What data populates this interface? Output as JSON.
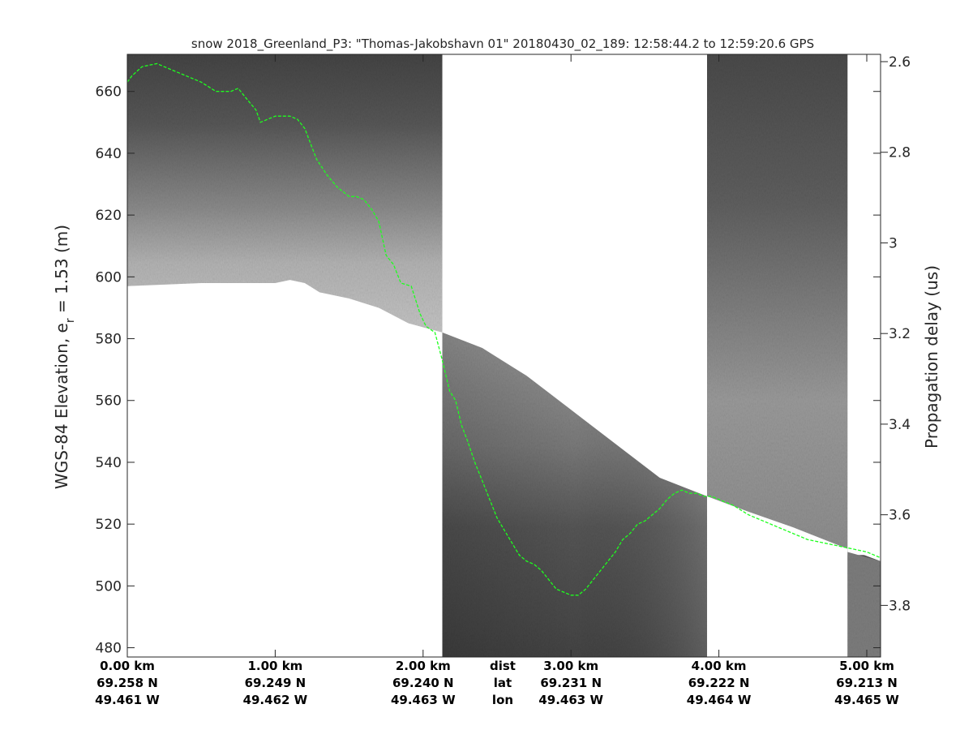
{
  "chart_data": {
    "type": "line",
    "title": "snow 2018_Greenland_P3: \"Thomas-Jakobshavn 01\"  20180430_02_189: 12:58:44.2 to 12:59:20.6 GPS",
    "ylabel_left": "WGS-84 Elevation, e",
    "ylabel_left_sub": "r",
    "ylabel_left_rest": " = 1.53 (m)",
    "ylabel_right": "Propagation delay (us)",
    "x_range_km": [
      0,
      5.0
    ],
    "ylim_left": [
      477,
      672
    ],
    "ylim_right_delay_us": [
      2.6,
      3.93
    ],
    "grid": false,
    "yticks_left": [
      "480",
      "500",
      "520",
      "540",
      "560",
      "580",
      "600",
      "620",
      "640",
      "660"
    ],
    "yticks_left_values": [
      480,
      500,
      520,
      540,
      560,
      580,
      600,
      620,
      640,
      660
    ],
    "yticks_right": [
      "2.6",
      "2.8",
      "3",
      "3.2",
      "3.4",
      "3.6",
      "3.8"
    ],
    "yticks_right_values": [
      2.6,
      2.8,
      3.0,
      3.2,
      3.4,
      3.6,
      3.8
    ],
    "bottom_axis": {
      "rows": [
        "dist",
        "lat",
        "lon"
      ],
      "columns": [
        {
          "x": 0.0,
          "dist": "0.00 km",
          "lat": "69.258 N",
          "lon": "49.461 W"
        },
        {
          "x": 1.0,
          "dist": "1.00 km",
          "lat": "69.249 N",
          "lon": "49.462 W"
        },
        {
          "x": 2.0,
          "dist": "2.00 km",
          "lat": "69.240 N",
          "lon": "49.463 W"
        },
        {
          "x": 3.0,
          "dist": "3.00 km",
          "lat": "69.231 N",
          "lon": "49.463 W"
        },
        {
          "x": 4.0,
          "dist": "4.00 km",
          "lat": "69.222 N",
          "lon": "49.464 W"
        },
        {
          "x": 5.0,
          "dist": "5.00 km",
          "lat": "69.213 N",
          "lon": "49.465 W"
        }
      ]
    },
    "radar_surface": {
      "description_color": "#1eff1e",
      "x": [
        0.0,
        0.03,
        0.1,
        0.2,
        0.3,
        0.4,
        0.5,
        0.6,
        0.7,
        0.75,
        0.8,
        0.87,
        0.9,
        1.0,
        1.1,
        1.15,
        1.2,
        1.28,
        1.35,
        1.42,
        1.5,
        1.55,
        1.6,
        1.65,
        1.7,
        1.75,
        1.8,
        1.85,
        1.92,
        1.98,
        2.02,
        2.08,
        2.13,
        2.18,
        2.22,
        2.26,
        2.3,
        2.35,
        2.4,
        2.45,
        2.5,
        2.55,
        2.6,
        2.65,
        2.7,
        2.75,
        2.8,
        2.85,
        2.9,
        2.95,
        3.0,
        3.05,
        3.1,
        3.15,
        3.2,
        3.25,
        3.3,
        3.35,
        3.4,
        3.45,
        3.5,
        3.55,
        3.6,
        3.65,
        3.7,
        3.75,
        3.8,
        3.85,
        3.9,
        3.95,
        4.0,
        4.1,
        4.2,
        4.3,
        4.4,
        4.5,
        4.6,
        4.7,
        4.8,
        4.9,
        5.0,
        5.05
      ],
      "elevation_m": [
        663,
        665,
        668,
        669,
        667,
        665,
        663,
        660,
        660,
        661,
        658,
        654,
        650,
        652,
        652,
        651,
        648,
        638,
        633,
        629,
        626,
        626,
        625,
        622,
        618,
        607,
        604,
        598,
        597,
        588,
        584,
        582,
        573,
        563,
        560,
        552,
        547,
        540,
        534,
        528,
        522,
        518,
        514,
        510,
        508,
        507,
        505,
        502,
        499,
        498,
        497,
        497,
        499,
        502,
        505,
        508,
        511,
        515,
        517,
        520,
        521,
        523,
        525,
        528,
        530,
        531,
        530,
        530,
        529,
        529,
        528,
        526,
        523,
        521,
        519,
        517,
        515,
        514,
        513,
        512,
        511,
        509
      ]
    },
    "radar_segments": [
      {
        "x_start": 0.0,
        "x_end": 2.13,
        "surface_top": [
          [
            0.0,
            597
          ],
          [
            0.5,
            598
          ],
          [
            1.0,
            598
          ],
          [
            1.1,
            599
          ],
          [
            1.2,
            598
          ],
          [
            1.3,
            595
          ],
          [
            1.5,
            593
          ],
          [
            1.7,
            590
          ],
          [
            1.9,
            585
          ],
          [
            2.13,
            582
          ]
        ]
      },
      {
        "x_start": 2.13,
        "x_end": 3.92,
        "surface_top": [
          [
            2.13,
            582
          ],
          [
            2.4,
            577
          ],
          [
            2.7,
            568
          ],
          [
            3.0,
            557
          ],
          [
            3.3,
            546
          ],
          [
            3.6,
            535
          ],
          [
            3.92,
            529
          ]
        ]
      },
      {
        "x_start": 4.87,
        "x_end": 5.0,
        "surface_top": [
          [
            4.87,
            512
          ],
          [
            5.0,
            509
          ]
        ]
      }
    ],
    "colors": {
      "axis": "#262626",
      "radar_dark": "#3c3c3c",
      "radar_mid": "#8c8c8c",
      "radar_light": "#bbbbbb",
      "surface_line": "#1eff1e"
    }
  }
}
